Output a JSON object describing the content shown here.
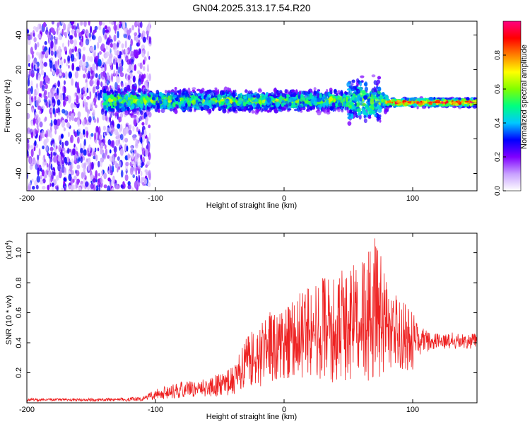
{
  "figure_title": "GN04.2025.313.17.54.R20",
  "chart_data": [
    {
      "type": "heatmap",
      "title": "GN04.2025.313.17.54.R20",
      "xlabel": "Height of straight line (km)",
      "ylabel": "Frequency (Hz)",
      "xlim": [
        -200,
        150
      ],
      "ylim": [
        -50,
        48
      ],
      "x_ticks": [
        -200,
        -100,
        0,
        100
      ],
      "x_tick_labels": [
        "-200",
        "-100",
        "0",
        "100"
      ],
      "y_ticks": [
        -40,
        -20,
        0,
        20,
        40
      ],
      "y_tick_labels": [
        "-40",
        "-20",
        "0",
        "20",
        "40"
      ],
      "colorbar": {
        "label": "Normalized spectral amplitude",
        "range": [
          0,
          1
        ],
        "ticks": [
          0.0,
          0.2,
          0.4,
          0.6,
          0.8
        ],
        "tick_labels": [
          "0.0",
          "0.2",
          "0.4",
          "0.6",
          "0.8"
        ],
        "colors": [
          "#ffffff",
          "#c8a0ff",
          "#8000ff",
          "#0000ff",
          "#00c8ff",
          "#00ff80",
          "#80ff00",
          "#ffff00",
          "#ff8000",
          "#ff0000",
          "#ff0080"
        ]
      },
      "features": [
        {
          "x_range": [
            -200,
            -110
          ],
          "freq_range": [
            -50,
            48
          ],
          "amplitude": 0.15,
          "description": "broadband noise"
        },
        {
          "x_range": [
            -140,
            80
          ],
          "center_freq": 2,
          "half_width_hz": 8,
          "amplitude": 0.45
        },
        {
          "x_range": [
            80,
            150
          ],
          "center_freq": 1,
          "half_width_hz": 3,
          "amplitude": 0.9
        }
      ]
    },
    {
      "type": "line",
      "xlabel": "Height of straight line (km)",
      "ylabel": "SNR (10 * v/v)",
      "y_multiplier": "(x10",
      "y_multiplier_exp": "4",
      "y_multiplier_close": ")",
      "xlim": [
        -200,
        150
      ],
      "ylim": [
        0,
        1.13
      ],
      "x_ticks": [
        -200,
        -100,
        0,
        100
      ],
      "x_tick_labels": [
        "-200",
        "-100",
        "0",
        "100"
      ],
      "y_ticks": [
        0.2,
        0.4,
        0.6,
        0.8,
        1.0
      ],
      "y_tick_labels": [
        "0.2",
        "0.4",
        "0.6",
        "0.8",
        "1.0"
      ],
      "color": "#ee2222",
      "envelope": [
        {
          "x": -200,
          "low": 0.01,
          "mean": 0.02,
          "high": 0.03
        },
        {
          "x": -150,
          "low": 0.01,
          "mean": 0.02,
          "high": 0.03
        },
        {
          "x": -110,
          "low": 0.01,
          "mean": 0.02,
          "high": 0.04
        },
        {
          "x": -100,
          "low": 0.02,
          "mean": 0.05,
          "high": 0.09
        },
        {
          "x": -80,
          "low": 0.03,
          "mean": 0.08,
          "high": 0.14
        },
        {
          "x": -60,
          "low": 0.04,
          "mean": 0.1,
          "high": 0.16
        },
        {
          "x": -40,
          "low": 0.05,
          "mean": 0.14,
          "high": 0.24
        },
        {
          "x": -30,
          "low": 0.08,
          "mean": 0.22,
          "high": 0.42
        },
        {
          "x": -20,
          "low": 0.1,
          "mean": 0.3,
          "high": 0.56
        },
        {
          "x": -10,
          "low": 0.14,
          "mean": 0.34,
          "high": 0.6
        },
        {
          "x": 0,
          "low": 0.16,
          "mean": 0.38,
          "high": 0.62
        },
        {
          "x": 20,
          "low": 0.16,
          "mean": 0.44,
          "high": 0.8
        },
        {
          "x": 40,
          "low": 0.12,
          "mean": 0.48,
          "high": 0.86
        },
        {
          "x": 60,
          "low": 0.16,
          "mean": 0.52,
          "high": 0.95
        },
        {
          "x": 72,
          "low": 0.1,
          "mean": 0.55,
          "high": 1.1
        },
        {
          "x": 85,
          "low": 0.2,
          "mean": 0.45,
          "high": 0.72
        },
        {
          "x": 100,
          "low": 0.22,
          "mean": 0.4,
          "high": 0.6
        },
        {
          "x": 104,
          "low": 0.3,
          "mean": 0.4,
          "high": 0.5
        },
        {
          "x": 120,
          "low": 0.36,
          "mean": 0.41,
          "high": 0.46
        },
        {
          "x": 150,
          "low": 0.36,
          "mean": 0.41,
          "high": 0.46
        }
      ]
    }
  ]
}
